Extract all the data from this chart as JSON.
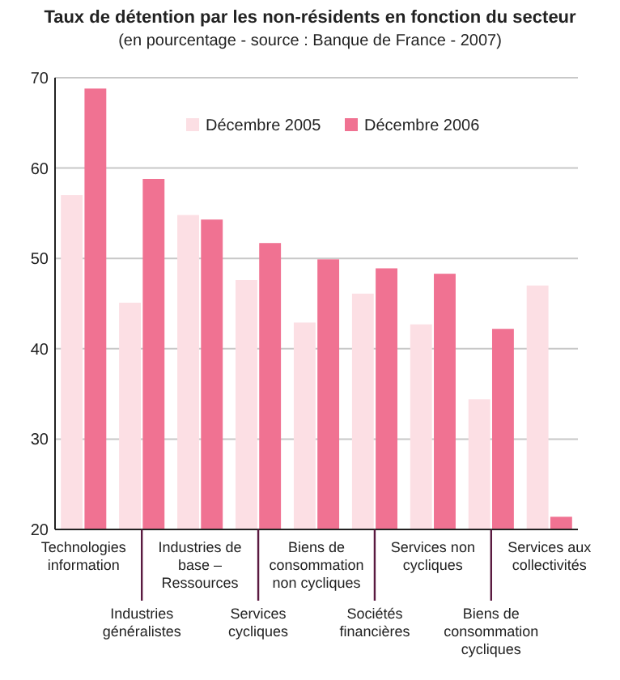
{
  "chart_data": {
    "type": "bar",
    "title": "Taux de détention par les non-résidents en fonction du secteur",
    "subtitle": "(en pourcentage - source : Banque de France - 2007)",
    "categories": [
      "Technologies information",
      "Industries généralistes",
      "Industries de base – Ressources",
      "Services cycliques",
      "Biens de consommation non cycliques",
      "Sociétés financières",
      "Services non cycliques",
      "Biens de consommation cycliques",
      "Services aux collectivités"
    ],
    "series": [
      {
        "name": "Décembre 2005",
        "color": "#fcdfe4",
        "values": [
          57.0,
          45.1,
          54.8,
          47.6,
          42.9,
          46.1,
          42.7,
          34.4,
          47.0
        ]
      },
      {
        "name": "Décembre 2006",
        "color": "#f07292",
        "values": [
          68.8,
          58.8,
          54.3,
          51.7,
          49.9,
          48.9,
          48.3,
          42.2,
          21.4
        ]
      }
    ],
    "ylim": [
      20,
      70
    ],
    "yticks": [
      20,
      30,
      40,
      50,
      60,
      70
    ],
    "grid": "y",
    "legend": "top right"
  }
}
